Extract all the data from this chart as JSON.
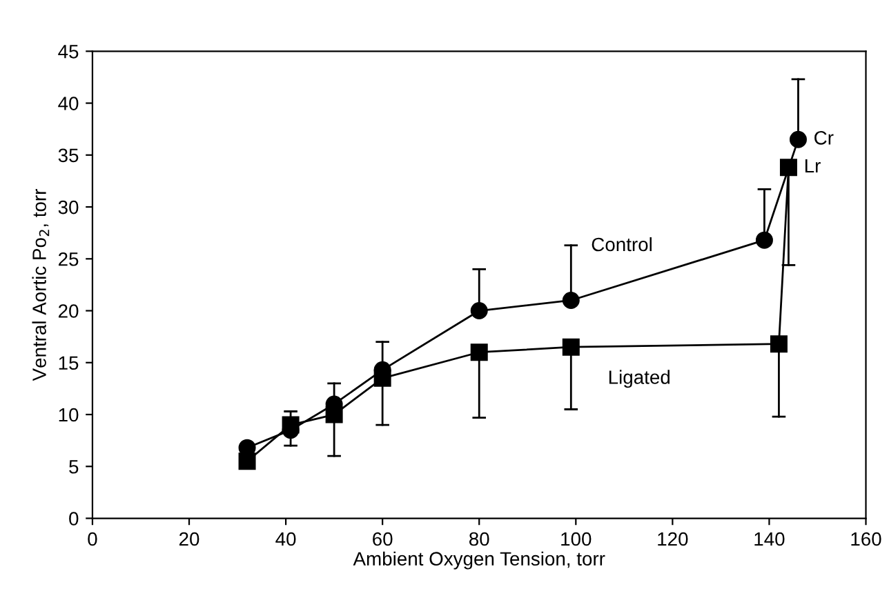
{
  "chart_data": {
    "type": "line",
    "xlabel": "Ambient Oxygen Tension, torr",
    "ylabel": "Ventral Aortic Po$_{2}$, torr",
    "xlim": [
      0,
      160
    ],
    "xticks": [
      0,
      20,
      40,
      60,
      80,
      100,
      120,
      140,
      160
    ],
    "ylim": [
      0,
      45
    ],
    "yticks": [
      0,
      5,
      10,
      15,
      20,
      25,
      30,
      35,
      40,
      45
    ],
    "grid": false,
    "legend": false,
    "line_style": "solid",
    "series": [
      {
        "name": "Control",
        "color": "#000000",
        "marker": "circle",
        "x": [
          32,
          41,
          50,
          60,
          80,
          99,
          139,
          146
        ],
        "values": [
          6.8,
          8.5,
          11,
          14.3,
          20,
          21,
          26.8,
          36.5
        ],
        "errors": [
          null,
          [
            7,
            8.5
          ],
          [
            11,
            13
          ],
          [
            14.3,
            17
          ],
          [
            20,
            24
          ],
          [
            21,
            26.3
          ],
          [
            26.8,
            31.7
          ],
          [
            36.5,
            42.3
          ]
        ]
      },
      {
        "name": "Ligated",
        "color": "#000000",
        "marker": "square",
        "x": [
          32,
          41,
          50,
          60,
          80,
          99,
          142,
          144
        ],
        "values": [
          5.5,
          9,
          10,
          13.5,
          16,
          16.5,
          16.8,
          33.8
        ],
        "errors": [
          null,
          [
            9,
            10.3
          ],
          [
            6,
            10
          ],
          [
            9,
            13.5
          ],
          [
            9.7,
            16
          ],
          [
            10.5,
            16.5
          ],
          [
            9.8,
            16.8
          ],
          [
            24.4,
            33.8
          ]
        ]
      }
    ],
    "annotations": [
      {
        "text": "Cr",
        "x": 146,
        "y": 36.5
      },
      {
        "text": "Lr",
        "x": 144,
        "y": 33.8
      }
    ]
  }
}
